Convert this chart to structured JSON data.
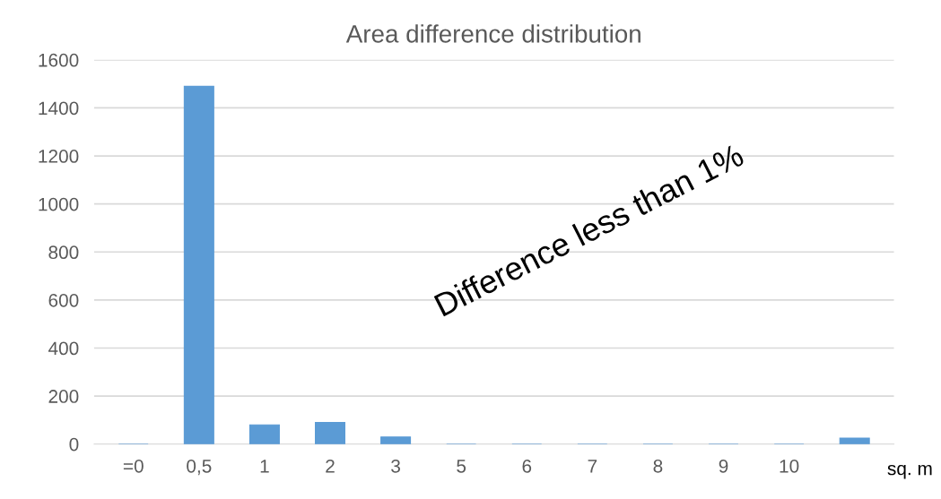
{
  "chart_data": {
    "type": "bar",
    "title": "Area difference distribution",
    "xlabel": "sq. m",
    "categories": [
      "=0",
      "0,5",
      "1",
      "2",
      "3",
      "5",
      "6",
      "7",
      "8",
      "9",
      "10",
      null
    ],
    "values": [
      0,
      1490,
      80,
      90,
      30,
      0,
      0,
      0,
      0,
      0,
      0,
      25
    ],
    "color": "#5b9bd5",
    "ylim": [
      0,
      1600
    ],
    "yticks": [
      0,
      200,
      400,
      600,
      800,
      1000,
      1200,
      1400,
      1600
    ],
    "grid": "y",
    "annotations": [
      "Difference less than 1%"
    ]
  }
}
